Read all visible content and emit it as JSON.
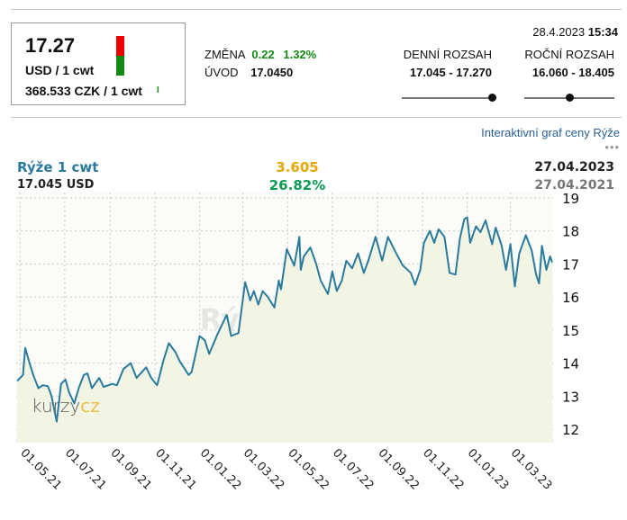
{
  "quote": {
    "price": "17.27",
    "unit": "USD / 1 cwt",
    "czk": "368.533 CZK / 1 cwt",
    "change_label": "ZMĚNA",
    "change_abs": "0.22",
    "change_pct": "1.32%",
    "open_label": "ÚVOD",
    "open_value": "17.0450",
    "date": "28.4.2023",
    "time": "15:34",
    "daily_range_label": "DENNÍ ROZSAH",
    "daily_range": "17.045 - 17.270",
    "daily_range_position": 1.0,
    "yearly_range_label": "ROČNÍ ROZSAH",
    "yearly_range": "16.060 - 18.405",
    "yearly_range_position": 0.5,
    "colors": {
      "up": "#138a13",
      "down": "#ee0000"
    }
  },
  "chart_link": "Interaktivní graf ceny Rýže",
  "more_icon": "ellipsis-icon",
  "summary": {
    "name": "Rýže 1 cwt",
    "start_value": "17.045 USD",
    "diff": "3.605",
    "diff_pct": "26.82%",
    "end_date": "27.04.2023",
    "start_date": "27.04.2021"
  },
  "watermark": "Rýže 1 cwt",
  "logo": {
    "part1": "kurzy",
    "part2": "cz"
  },
  "chart_data": {
    "type": "line",
    "ylim": [
      12,
      19
    ],
    "yticks": [
      12,
      13,
      14,
      15,
      16,
      17,
      18,
      19
    ],
    "xlim": [
      "2021-04-27",
      "2023-04-27"
    ],
    "xticks": [
      "2021-05-01",
      "2021-07-01",
      "2021-09-01",
      "2021-11-01",
      "2022-01-01",
      "2022-03-01",
      "2022-05-01",
      "2022-07-01",
      "2022-09-01",
      "2022-11-01",
      "2023-01-01",
      "2023-03-01"
    ],
    "xtick_labels": [
      "01.05.21",
      "01.07.21",
      "01.09.21",
      "01.11.21",
      "01.01.22",
      "01.03.22",
      "01.05.22",
      "01.07.22",
      "01.09.22",
      "01.11.22",
      "01.01.23",
      "01.03.23"
    ],
    "grid": true,
    "line_color": "#2a7a9e",
    "fill_color": "#f3f5e4",
    "points": [
      [
        "2021-04-27",
        13.46
      ],
      [
        "2021-05-05",
        13.64
      ],
      [
        "2021-05-08",
        14.46
      ],
      [
        "2021-05-14",
        14.0
      ],
      [
        "2021-05-19",
        13.64
      ],
      [
        "2021-05-26",
        13.24
      ],
      [
        "2021-06-01",
        13.33
      ],
      [
        "2021-06-08",
        13.3
      ],
      [
        "2021-06-13",
        13.0
      ],
      [
        "2021-06-20",
        12.23
      ],
      [
        "2021-06-26",
        13.37
      ],
      [
        "2021-07-02",
        13.5
      ],
      [
        "2021-07-07",
        13.1
      ],
      [
        "2021-07-14",
        12.78
      ],
      [
        "2021-07-20",
        13.24
      ],
      [
        "2021-07-27",
        13.64
      ],
      [
        "2021-08-01",
        13.69
      ],
      [
        "2021-08-07",
        13.24
      ],
      [
        "2021-08-17",
        13.55
      ],
      [
        "2021-08-23",
        13.28
      ],
      [
        "2021-09-04",
        13.37
      ],
      [
        "2021-09-10",
        13.33
      ],
      [
        "2021-09-19",
        13.82
      ],
      [
        "2021-09-29",
        14.0
      ],
      [
        "2021-10-07",
        13.55
      ],
      [
        "2021-10-20",
        13.87
      ],
      [
        "2021-10-27",
        13.55
      ],
      [
        "2021-11-04",
        13.33
      ],
      [
        "2021-11-13",
        14.1
      ],
      [
        "2021-11-20",
        14.6
      ],
      [
        "2021-11-29",
        14.33
      ],
      [
        "2021-12-05",
        14.05
      ],
      [
        "2021-12-17",
        13.64
      ],
      [
        "2021-12-21",
        13.73
      ],
      [
        "2022-01-01",
        14.82
      ],
      [
        "2022-01-08",
        14.69
      ],
      [
        "2022-01-14",
        14.28
      ],
      [
        "2022-01-26",
        14.91
      ],
      [
        "2022-02-07",
        15.46
      ],
      [
        "2022-02-13",
        14.82
      ],
      [
        "2022-02-23",
        14.91
      ],
      [
        "2022-03-04",
        16.45
      ],
      [
        "2022-03-11",
        15.9
      ],
      [
        "2022-03-16",
        16.18
      ],
      [
        "2022-03-22",
        15.77
      ],
      [
        "2022-03-28",
        16.18
      ],
      [
        "2022-04-04",
        16.0
      ],
      [
        "2022-04-13",
        15.68
      ],
      [
        "2022-04-19",
        16.5
      ],
      [
        "2022-04-22",
        16.23
      ],
      [
        "2022-04-30",
        17.45
      ],
      [
        "2022-05-10",
        16.95
      ],
      [
        "2022-05-17",
        17.82
      ],
      [
        "2022-05-19",
        16.82
      ],
      [
        "2022-05-23",
        17.23
      ],
      [
        "2022-06-01",
        17.5
      ],
      [
        "2022-06-09",
        17.0
      ],
      [
        "2022-06-15",
        16.5
      ],
      [
        "2022-06-25",
        16.09
      ],
      [
        "2022-07-01",
        16.77
      ],
      [
        "2022-07-07",
        16.18
      ],
      [
        "2022-07-14",
        16.5
      ],
      [
        "2022-07-20",
        17.1
      ],
      [
        "2022-07-28",
        16.87
      ],
      [
        "2022-08-05",
        17.32
      ],
      [
        "2022-08-13",
        16.73
      ],
      [
        "2022-08-19",
        17.1
      ],
      [
        "2022-08-29",
        17.82
      ],
      [
        "2022-09-07",
        17.1
      ],
      [
        "2022-09-15",
        17.82
      ],
      [
        "2022-09-25",
        17.37
      ],
      [
        "2022-10-05",
        16.96
      ],
      [
        "2022-10-16",
        16.73
      ],
      [
        "2022-10-22",
        16.37
      ],
      [
        "2022-10-29",
        16.82
      ],
      [
        "2022-11-03",
        17.64
      ],
      [
        "2022-11-11",
        18.0
      ],
      [
        "2022-11-17",
        17.64
      ],
      [
        "2022-11-23",
        18.05
      ],
      [
        "2022-12-01",
        17.82
      ],
      [
        "2022-12-08",
        16.73
      ],
      [
        "2022-12-16",
        16.68
      ],
      [
        "2022-12-22",
        17.77
      ],
      [
        "2022-12-28",
        18.36
      ],
      [
        "2023-01-01",
        18.41
      ],
      [
        "2023-01-05",
        17.64
      ],
      [
        "2023-01-13",
        18.14
      ],
      [
        "2023-01-19",
        17.96
      ],
      [
        "2023-01-26",
        18.32
      ],
      [
        "2023-02-04",
        17.6
      ],
      [
        "2023-02-09",
        18.1
      ],
      [
        "2023-02-17",
        17.55
      ],
      [
        "2023-02-23",
        16.82
      ],
      [
        "2023-03-01",
        17.6
      ],
      [
        "2023-03-07",
        16.32
      ],
      [
        "2023-03-13",
        17.32
      ],
      [
        "2023-03-22",
        17.87
      ],
      [
        "2023-03-30",
        17.41
      ],
      [
        "2023-04-05",
        16.68
      ],
      [
        "2023-04-09",
        16.41
      ],
      [
        "2023-04-13",
        17.55
      ],
      [
        "2023-04-19",
        16.82
      ],
      [
        "2023-04-24",
        17.23
      ],
      [
        "2023-04-27",
        17.05
      ]
    ]
  }
}
